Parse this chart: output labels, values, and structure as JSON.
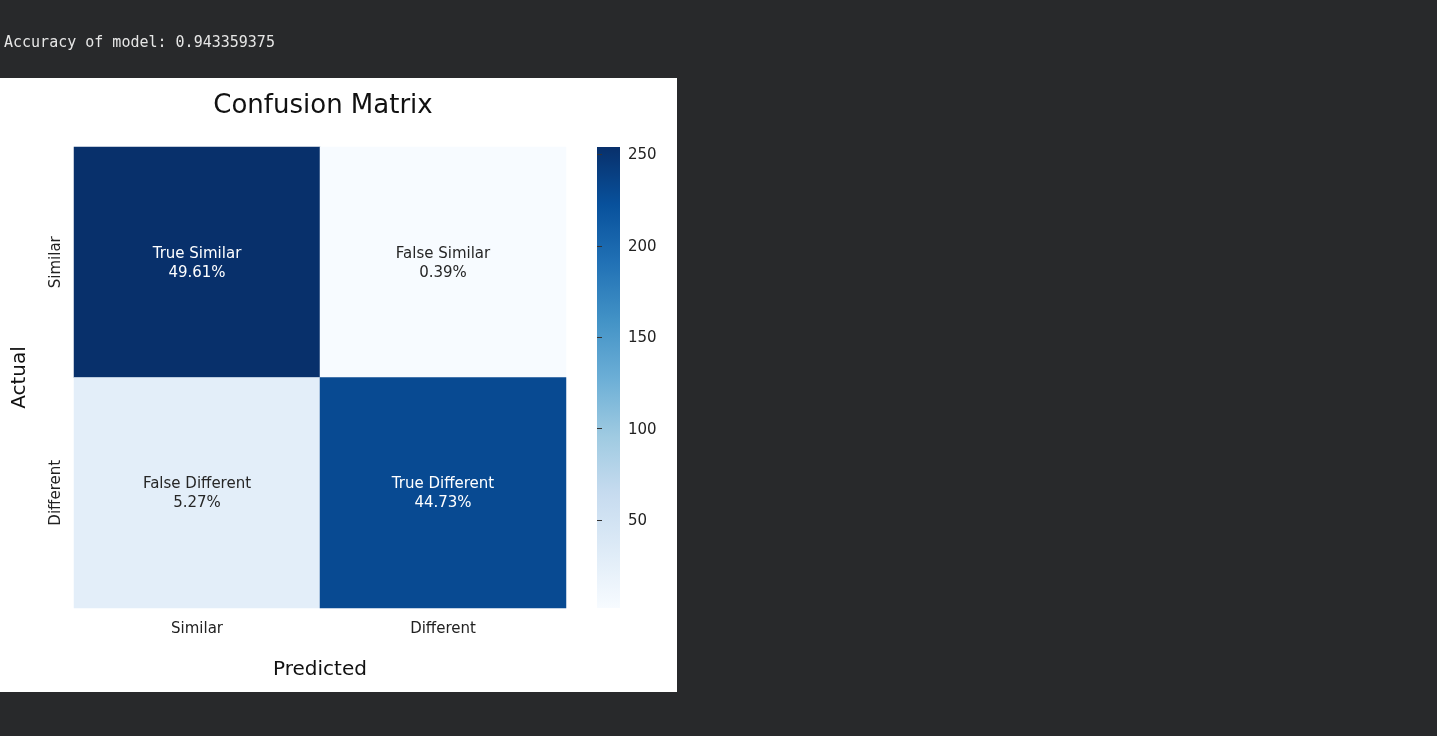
{
  "chart_data": {
    "type": "heatmap",
    "title": "Confusion Matrix",
    "xlabel": "Predicted",
    "ylabel": "Actual",
    "annotations": [
      "Accuracy of model: 0.943359375"
    ],
    "categories": [
      "Similar",
      "Different"
    ],
    "y_categories": [
      "Similar",
      "Different"
    ],
    "cells": [
      [
        254,
        2
      ],
      [
        27,
        229
      ]
    ],
    "cell_labels": [
      [
        "True Similar\n49.61%",
        "False Similar\n0.39%"
      ],
      [
        "False Different\n5.27%",
        "True Different\n44.73%"
      ]
    ],
    "clim": [
      2,
      254
    ],
    "cticks": [
      50,
      100,
      150,
      200,
      250
    ]
  }
}
